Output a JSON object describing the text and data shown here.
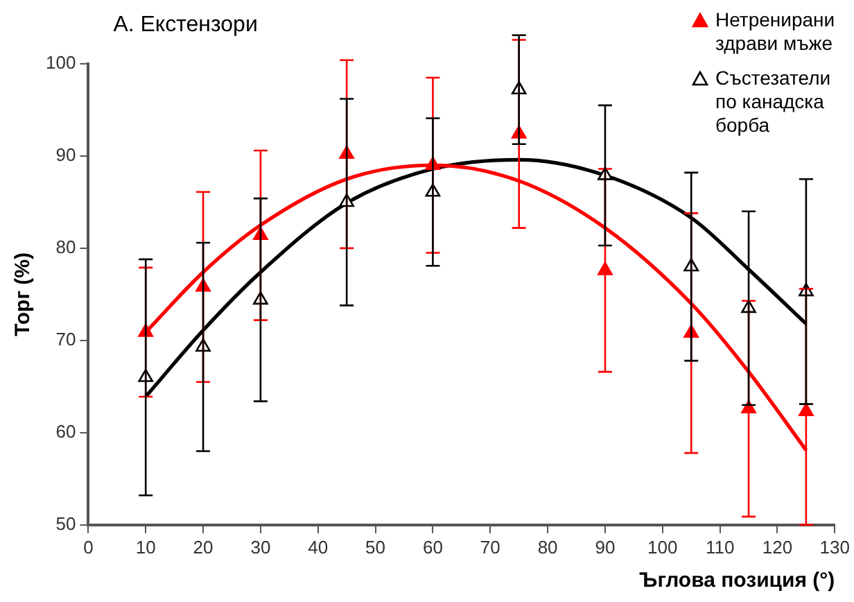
{
  "chart_data": {
    "type": "scatter",
    "title": "А. Екстензори",
    "xlabel": "Ъглова позиция (°)",
    "ylabel": "Торг (%)",
    "xlim": [
      0,
      130
    ],
    "xticks": [
      0,
      10,
      20,
      30,
      40,
      50,
      60,
      70,
      80,
      90,
      100,
      110,
      120,
      130
    ],
    "ylim": [
      50,
      100
    ],
    "yticks": [
      50,
      60,
      70,
      80,
      90,
      100
    ],
    "grid": false,
    "legend": "top right",
    "series": [
      {
        "name": "Нетренирани здрави мъже",
        "marker": "triangle",
        "color": "#ff0000",
        "x": [
          10,
          20,
          30,
          45,
          60,
          75,
          90,
          105,
          115,
          125
        ],
        "values": [
          70.9,
          75.8,
          81.4,
          90.2,
          89.0,
          92.4,
          77.6,
          70.8,
          62.6,
          62.3
        ],
        "errors": [
          7,
          10.3,
          9.2,
          10.2,
          9.5,
          10.2,
          11,
          13,
          11.7,
          [
            50,
            75.6
          ]
        ]
      },
      {
        "name": "Състезатели по канадска борба",
        "marker": "triangle",
        "color": "#000000",
        "x": [
          10,
          20,
          30,
          45,
          60,
          75,
          90,
          105,
          115,
          125
        ],
        "values": [
          66.0,
          69.3,
          74.4,
          85.0,
          86.1,
          97.2,
          87.9,
          78.0,
          73.5,
          75.3
        ],
        "errors": [
          12.8,
          11.3,
          11,
          11.2,
          8,
          5.9,
          7.6,
          10.2,
          10.5,
          12.2
        ]
      },
      {
        "type": "line",
        "marker": "none",
        "color": "#ff0000",
        "x": [
          10,
          20,
          30,
          45,
          60,
          75,
          90,
          105,
          115,
          125
        ],
        "values": [
          70.9,
          77.4,
          82.5,
          87.5,
          89.0,
          87.3,
          82.2,
          74.0,
          66.6,
          58.1
        ]
      },
      {
        "type": "line",
        "marker": "none",
        "color": "#000000",
        "x": [
          10,
          20,
          30,
          45,
          60,
          75,
          90,
          105,
          115,
          125
        ],
        "values": [
          63.9,
          71.1,
          77.4,
          84.9,
          88.6,
          89.6,
          87.9,
          83.3,
          77.7,
          71.8
        ]
      }
    ]
  }
}
